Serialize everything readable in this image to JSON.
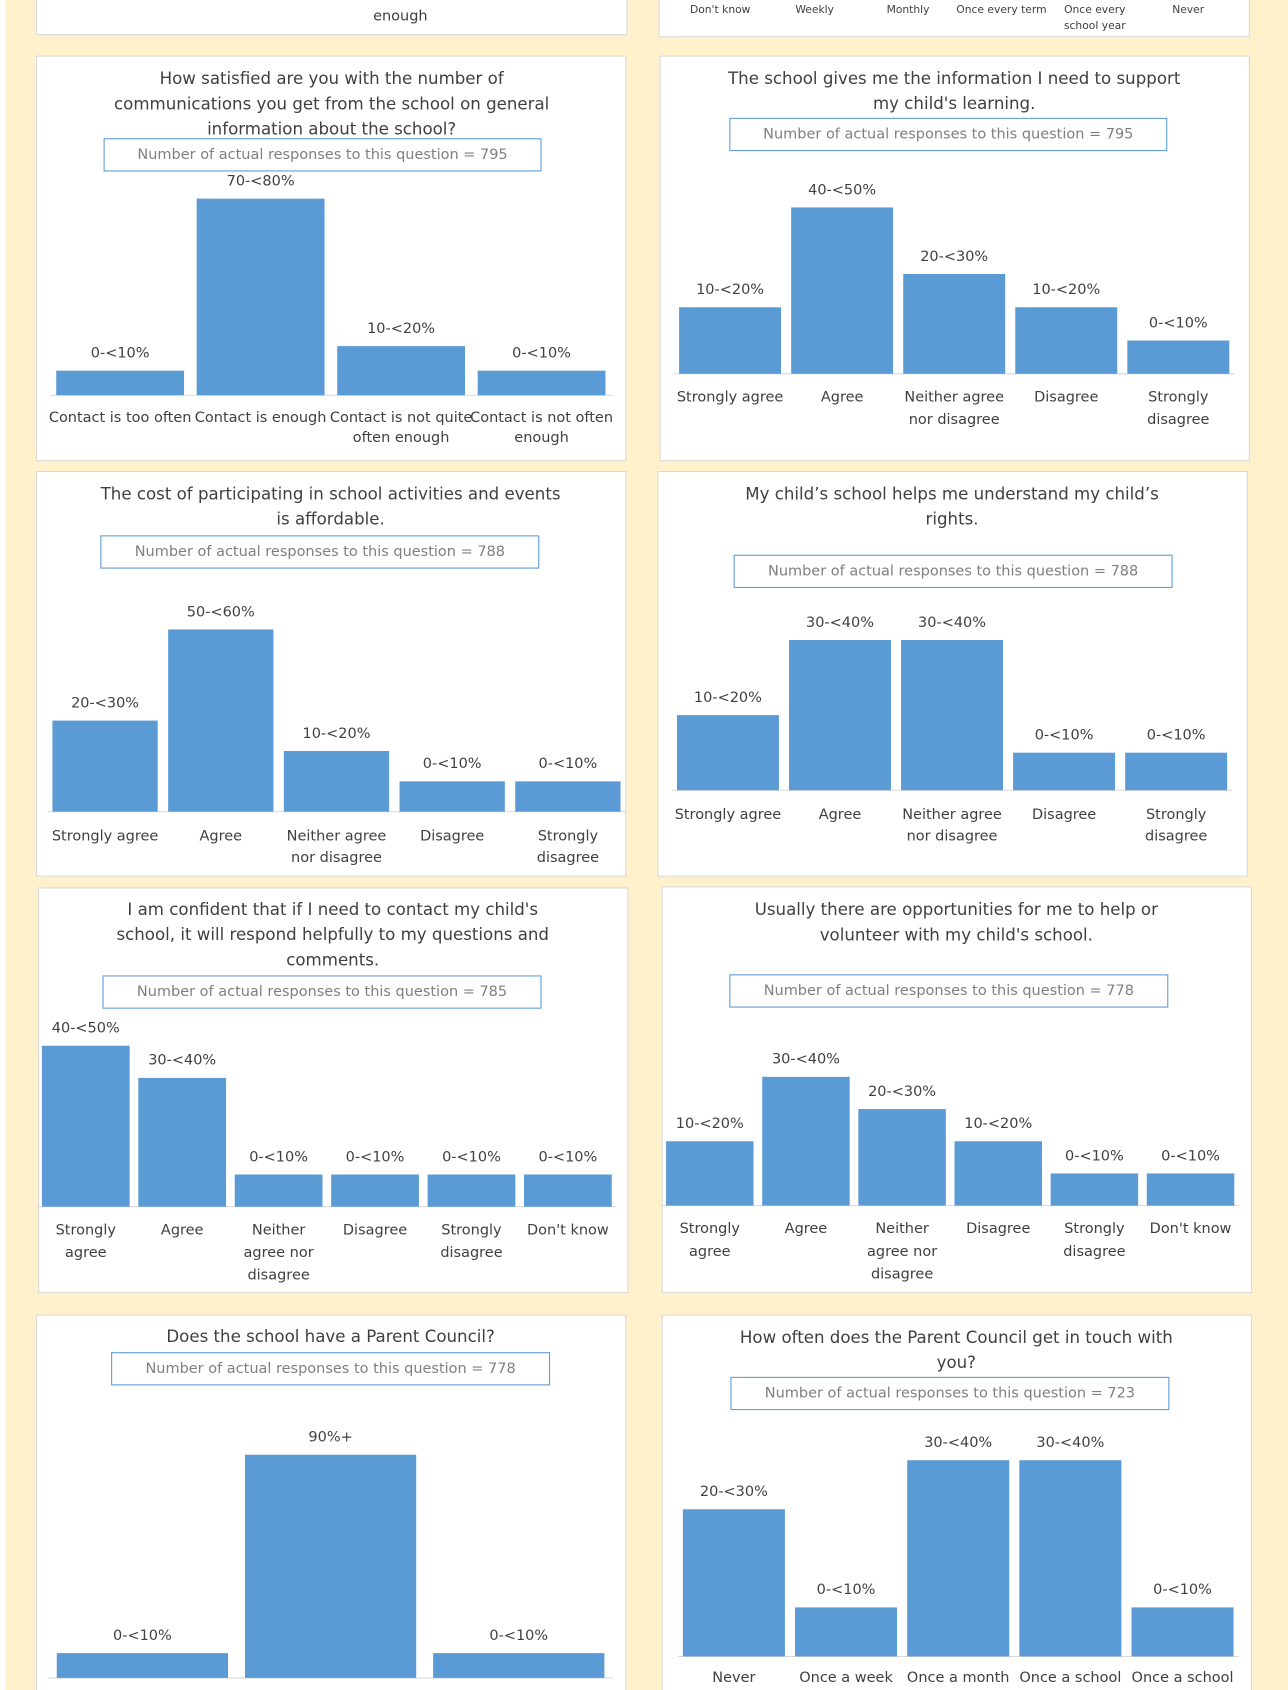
{
  "fragments": {
    "top_left": [
      "enough"
    ],
    "top_right": [
      [
        "Don't know"
      ],
      [
        "Weekly"
      ],
      [
        "Monthly"
      ],
      [
        "Once every term"
      ],
      [
        "Once every",
        "school year"
      ],
      [
        "Never"
      ]
    ]
  },
  "chart_data": [
    {
      "type": "bar",
      "title": [
        "How satisfied are you with the number of",
        "communications you get from the school on general",
        "information about the school?"
      ],
      "subtitle": "Number of actual responses to this question = 795",
      "categories": [
        [
          "Contact is too often"
        ],
        [
          "Contact is enough"
        ],
        [
          "Contact is not quite",
          "often enough"
        ],
        [
          "Contact is not often",
          "enough"
        ]
      ],
      "values": [
        10,
        80,
        20,
        10
      ],
      "value_labels": [
        "0-<10%",
        "70-<80%",
        "10-<20%",
        "0-<10%"
      ],
      "color": "#5b9bd5"
    },
    {
      "type": "bar",
      "title": [
        "The school gives me the information I need to support",
        "my child's learning."
      ],
      "subtitle": "Number of actual responses to this question = 795",
      "categories": [
        [
          "Strongly agree"
        ],
        [
          "Agree"
        ],
        [
          "Neither agree",
          "nor disagree"
        ],
        [
          "Disagree"
        ],
        [
          "Strongly",
          "disagree"
        ]
      ],
      "values": [
        20,
        50,
        30,
        20,
        10
      ],
      "value_labels": [
        "10-<20%",
        "40-<50%",
        "20-<30%",
        "10-<20%",
        "0-<10%"
      ],
      "color": "#5b9bd5"
    },
    {
      "type": "bar",
      "title": [
        "The cost of participating in school activities and events",
        "is affordable."
      ],
      "subtitle": "Number of actual responses to this question = 788",
      "categories": [
        [
          "Strongly agree"
        ],
        [
          "Agree"
        ],
        [
          "Neither agree",
          "nor disagree"
        ],
        [
          "Disagree"
        ],
        [
          "Strongly",
          "disagree"
        ]
      ],
      "values": [
        30,
        60,
        20,
        10,
        10
      ],
      "value_labels": [
        "20-<30%",
        "50-<60%",
        "10-<20%",
        "0-<10%",
        "0-<10%"
      ],
      "color": "#5b9bd5"
    },
    {
      "type": "bar",
      "title": [
        "My child’s school helps me understand my child’s",
        "rights."
      ],
      "subtitle": "Number of actual responses to this question = 788",
      "categories": [
        [
          "Strongly agree"
        ],
        [
          "Agree"
        ],
        [
          "Neither agree",
          "nor disagree"
        ],
        [
          "Disagree"
        ],
        [
          "Strongly",
          "disagree"
        ]
      ],
      "values": [
        20,
        40,
        40,
        10,
        10
      ],
      "value_labels": [
        "10-<20%",
        "30-<40%",
        "30-<40%",
        "0-<10%",
        "0-<10%"
      ],
      "color": "#5b9bd5"
    },
    {
      "type": "bar",
      "title": [
        "I am confident that if I need to contact my child's",
        "school, it will respond helpfully to my questions and",
        "comments."
      ],
      "subtitle": "Number of actual responses to this question = 785",
      "categories": [
        [
          "Strongly",
          "agree"
        ],
        [
          "Agree"
        ],
        [
          "Neither",
          "agree nor",
          "disagree"
        ],
        [
          "Disagree"
        ],
        [
          "Strongly",
          "disagree"
        ],
        [
          "Don't know"
        ]
      ],
      "values": [
        50,
        40,
        10,
        10,
        10,
        10
      ],
      "value_labels": [
        "40-<50%",
        "30-<40%",
        "0-<10%",
        "0-<10%",
        "0-<10%",
        "0-<10%"
      ],
      "color": "#5b9bd5"
    },
    {
      "type": "bar",
      "title": [
        "Usually there are opportunities for me to help or",
        "volunteer with my child's school."
      ],
      "subtitle": "Number of actual responses to this question = 778",
      "categories": [
        [
          "Strongly",
          "agree"
        ],
        [
          "Agree"
        ],
        [
          "Neither",
          "agree nor",
          "disagree"
        ],
        [
          "Disagree"
        ],
        [
          "Strongly",
          "disagree"
        ],
        [
          "Don't know"
        ]
      ],
      "values": [
        20,
        40,
        30,
        20,
        10,
        10
      ],
      "value_labels": [
        "10-<20%",
        "30-<40%",
        "20-<30%",
        "10-<20%",
        "0-<10%",
        "0-<10%"
      ],
      "color": "#5b9bd5"
    },
    {
      "type": "bar",
      "title": [
        "Does the school have a Parent Council?"
      ],
      "subtitle": "Number of actual responses to this question = 778",
      "categories": [
        null,
        null,
        null
      ],
      "values": [
        10,
        90,
        10
      ],
      "value_labels": [
        "0-<10%",
        "90%+",
        "0-<10%"
      ],
      "color": "#5b9bd5"
    },
    {
      "type": "bar",
      "title": [
        "How often does the Parent Council get in touch with",
        "you?"
      ],
      "subtitle": "Number of actual responses to this question = 723",
      "categories": [
        [
          "Never"
        ],
        [
          "Once a week"
        ],
        [
          "Once a month"
        ],
        [
          "Once a school"
        ],
        [
          "Once a school"
        ]
      ],
      "values": [
        30,
        10,
        40,
        40,
        10
      ],
      "value_labels": [
        "20-<30%",
        "0-<10%",
        "30-<40%",
        "30-<40%",
        "0-<10%"
      ],
      "color": "#5b9bd5"
    }
  ]
}
